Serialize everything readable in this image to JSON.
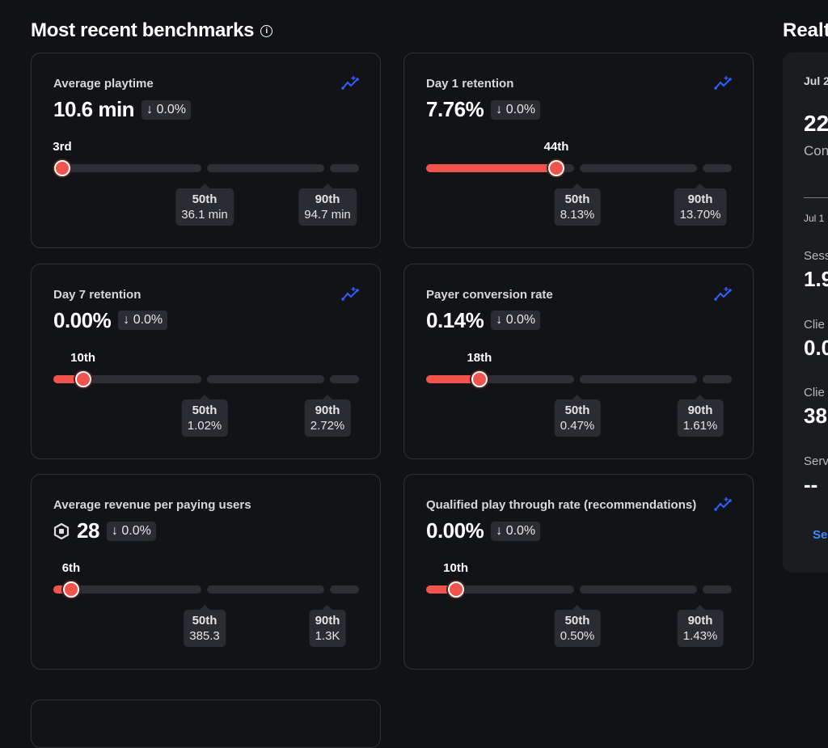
{
  "section_title": "Most recent benchmarks",
  "colors": {
    "accent": "#f0544c",
    "trend_icon": "#2f5fff",
    "link": "#3d8bff"
  },
  "cards": [
    {
      "title": "Average playtime",
      "value": "10.6 min",
      "change": "0.0%",
      "percentile": 3,
      "percentile_label": "3rd",
      "p50": "36.1 min",
      "p90": "94.7 min",
      "trend": true,
      "currency": false
    },
    {
      "title": "Day 1 retention",
      "value": "7.76%",
      "change": "0.0%",
      "percentile": 44,
      "percentile_label": "44th",
      "p50": "8.13%",
      "p90": "13.70%",
      "trend": true,
      "currency": false
    },
    {
      "title": "Day 7 retention",
      "value": "0.00%",
      "change": "0.0%",
      "percentile": 10,
      "percentile_label": "10th",
      "p50": "1.02%",
      "p90": "2.72%",
      "trend": true,
      "currency": false
    },
    {
      "title": "Payer conversion rate",
      "value": "0.14%",
      "change": "0.0%",
      "percentile": 18,
      "percentile_label": "18th",
      "p50": "0.47%",
      "p90": "1.61%",
      "trend": true,
      "currency": false
    },
    {
      "title": "Average revenue per paying users",
      "value": "28",
      "change": "0.0%",
      "percentile": 6,
      "percentile_label": "6th",
      "p50": "385.3",
      "p90": "1.3K",
      "trend": false,
      "currency": true
    },
    {
      "title": "Qualified play through rate (recommendations)",
      "value": "0.00%",
      "change": "0.0%",
      "percentile": 10,
      "percentile_label": "10th",
      "p50": "0.50%",
      "p90": "1.43%",
      "trend": true,
      "currency": false
    }
  ],
  "p50_label": "50th",
  "p90_label": "90th",
  "realtime": {
    "title": "Realt",
    "date": "Jul 2",
    "value": "22",
    "label": "Con",
    "axis_date": "Jul 1",
    "stats": [
      {
        "label": "Sess",
        "value": "1.9"
      },
      {
        "label": "Clie",
        "value": "0.0"
      },
      {
        "label": "Clie",
        "value": "38"
      },
      {
        "label": "Serv",
        "value": "--"
      }
    ],
    "link": "Se"
  }
}
